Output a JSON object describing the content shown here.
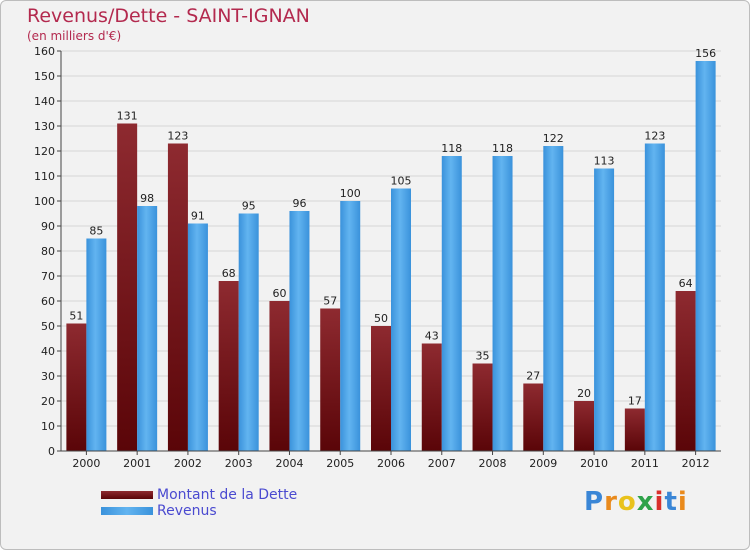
{
  "chart_data": {
    "type": "bar",
    "title": "Revenus/Dette - SAINT-IGNAN",
    "subtitle": "(en milliers d'€)",
    "xlabel": "",
    "ylabel": "",
    "ylim": [
      0,
      160
    ],
    "ytick_step": 10,
    "grid": true,
    "categories": [
      "2000",
      "2001",
      "2002",
      "2003",
      "2004",
      "2005",
      "2006",
      "2007",
      "2008",
      "2009",
      "2010",
      "2011",
      "2012"
    ],
    "series": [
      {
        "name": "Montant de la Dette",
        "color": "#7a1a1e",
        "values": [
          51,
          131,
          123,
          68,
          60,
          57,
          50,
          43,
          35,
          27,
          20,
          17,
          64
        ]
      },
      {
        "name": "Revenus",
        "color": "#4da3e6",
        "values": [
          85,
          98,
          91,
          95,
          96,
          100,
          105,
          118,
          118,
          122,
          113,
          123,
          156
        ]
      }
    ],
    "legend_position": "bottom-left"
  },
  "logo": {
    "text": "Proxiti",
    "colors": [
      "#3a86d6",
      "#e98a1c",
      "#e9c21c",
      "#2fa34a",
      "#d9302c",
      "#3a86d6",
      "#e98a1c"
    ]
  }
}
